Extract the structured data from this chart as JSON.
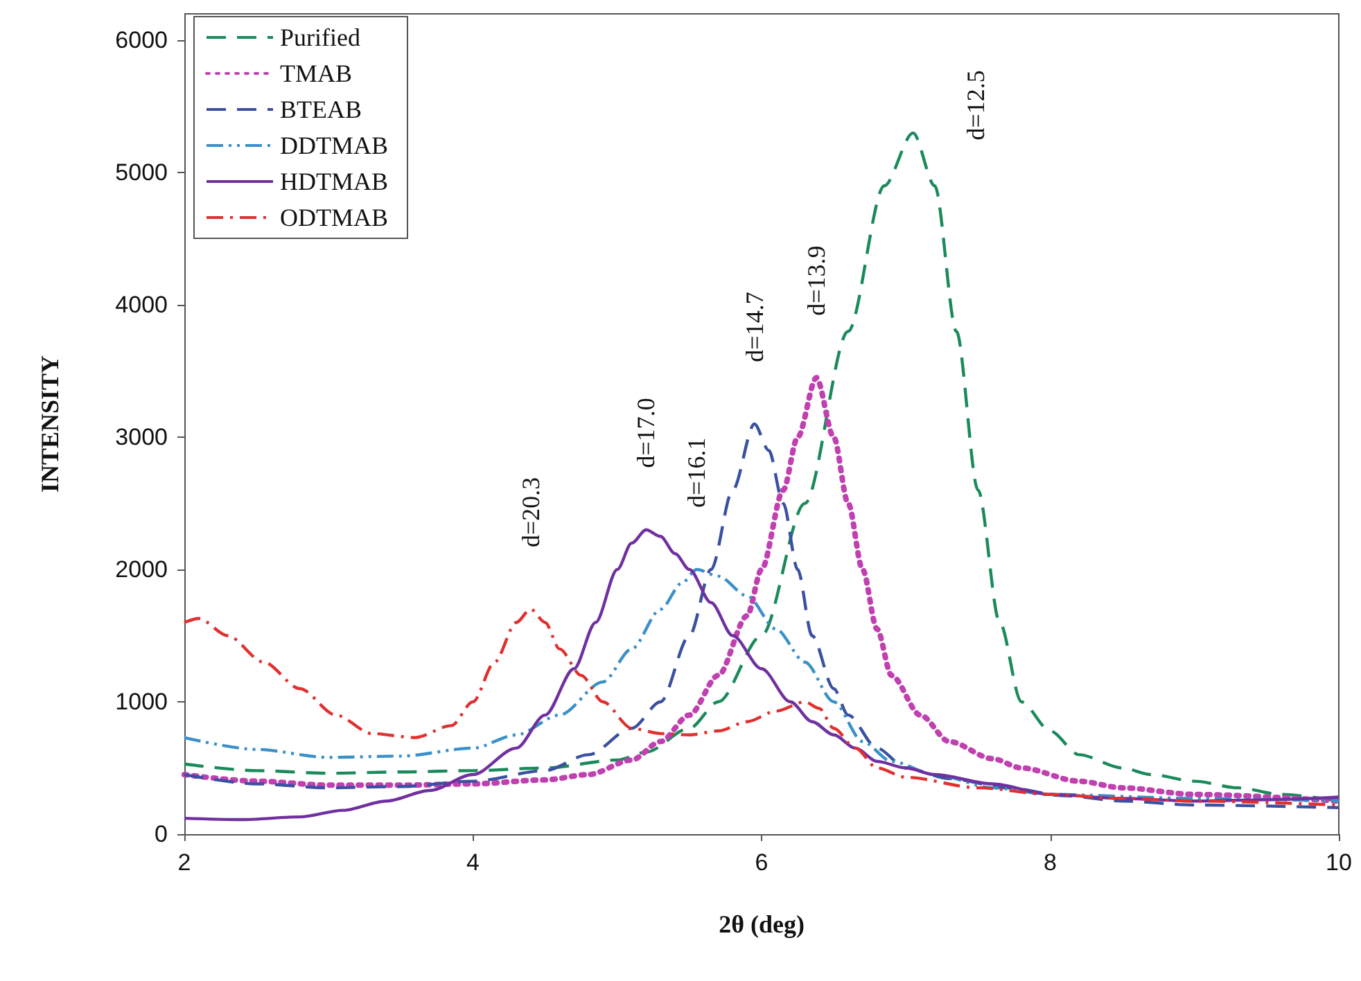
{
  "chart_data": {
    "type": "line",
    "xlabel": "2θ (deg)",
    "ylabel": "INTENSITY",
    "xlim": [
      2,
      10
    ],
    "xticks": [
      2,
      4,
      6,
      8,
      10
    ],
    "ylim": [
      0,
      6200
    ],
    "yticks": [
      0,
      1000,
      2000,
      3000,
      4000,
      5000,
      6000
    ],
    "grid": false,
    "legend": "top left",
    "marker": "none",
    "series": [
      {
        "name": "Purified",
        "color": "#1a8a5a",
        "line_style": "dashed",
        "x": [
          2,
          2.5,
          3,
          3.5,
          4,
          4.5,
          5,
          5.2,
          5.5,
          5.7,
          6,
          6.3,
          6.6,
          6.85,
          7.05,
          7.2,
          7.35,
          7.5,
          7.65,
          7.8,
          8,
          8.2,
          8.5,
          8.7,
          9,
          9.3,
          9.6,
          10
        ],
        "values": [
          530,
          480,
          460,
          470,
          480,
          500,
          560,
          620,
          800,
          1000,
          1500,
          2500,
          3800,
          4900,
          5300,
          4900,
          3800,
          2600,
          1600,
          1000,
          780,
          600,
          500,
          450,
          400,
          350,
          300,
          250
        ]
      },
      {
        "name": "TMAB",
        "color": "#c040b0",
        "line_style": "dotted",
        "x": [
          2,
          2.5,
          3,
          3.5,
          4,
          4.5,
          4.8,
          5.1,
          5.3,
          5.5,
          5.7,
          5.9,
          6.0,
          6.15,
          6.25,
          6.38,
          6.5,
          6.6,
          6.7,
          6.8,
          6.9,
          7.1,
          7.3,
          7.6,
          7.8,
          8.2,
          8.5,
          9,
          10
        ],
        "values": [
          450,
          400,
          370,
          370,
          380,
          410,
          450,
          560,
          700,
          900,
          1200,
          1650,
          2000,
          2600,
          3000,
          3450,
          3000,
          2500,
          2000,
          1550,
          1200,
          900,
          700,
          570,
          500,
          400,
          350,
          300,
          250
        ]
      },
      {
        "name": "BTEAB",
        "color": "#3a50a0",
        "line_style": "dashed",
        "x": [
          2,
          2.5,
          3,
          3.5,
          4,
          4.5,
          4.8,
          5.1,
          5.3,
          5.5,
          5.65,
          5.8,
          5.95,
          6.05,
          6.15,
          6.25,
          6.35,
          6.5,
          6.6,
          6.8,
          7,
          7.3,
          7.7,
          8.1,
          8.5,
          9,
          10
        ],
        "values": [
          450,
          380,
          350,
          360,
          400,
          480,
          600,
          800,
          1000,
          1500,
          2000,
          2600,
          3100,
          2900,
          2500,
          2000,
          1500,
          1100,
          900,
          650,
          500,
          420,
          350,
          290,
          250,
          220,
          200
        ]
      },
      {
        "name": "DDTMAB",
        "color": "#3a90c8",
        "line_style": "dashdotdot",
        "x": [
          2,
          2.5,
          3,
          3.5,
          4,
          4.3,
          4.6,
          4.9,
          5.1,
          5.3,
          5.45,
          5.55,
          5.7,
          5.9,
          6.1,
          6.3,
          6.5,
          6.7,
          6.9,
          7.2,
          7.6,
          8,
          9,
          10
        ],
        "values": [
          730,
          640,
          580,
          590,
          650,
          750,
          900,
          1150,
          1400,
          1700,
          1900,
          2000,
          1950,
          1800,
          1550,
          1300,
          1000,
          700,
          550,
          450,
          350,
          300,
          270,
          250
        ]
      },
      {
        "name": "HDTMAB",
        "color": "#7030a0",
        "line_style": "solid",
        "x": [
          2,
          2.4,
          2.8,
          3.1,
          3.4,
          3.7,
          4,
          4.3,
          4.5,
          4.7,
          4.85,
          5,
          5.1,
          5.2,
          5.3,
          5.4,
          5.5,
          5.65,
          5.8,
          6,
          6.2,
          6.35,
          6.5,
          6.65,
          6.8,
          7,
          7.2,
          7.6,
          8,
          8.5,
          9,
          9.5,
          10
        ],
        "values": [
          120,
          110,
          130,
          180,
          250,
          330,
          450,
          650,
          900,
          1250,
          1600,
          2000,
          2200,
          2300,
          2250,
          2120,
          2000,
          1750,
          1500,
          1250,
          1000,
          850,
          750,
          650,
          550,
          500,
          450,
          380,
          300,
          270,
          250,
          260,
          280
        ]
      },
      {
        "name": "ODTMAB",
        "color": "#e03030",
        "line_style": "dashdot",
        "x": [
          2,
          2.1,
          2.3,
          2.55,
          2.8,
          3.05,
          3.3,
          3.6,
          3.85,
          4,
          4.15,
          4.3,
          4.4,
          4.5,
          4.6,
          4.75,
          4.9,
          5.1,
          5.3,
          5.5,
          5.7,
          5.9,
          6.1,
          6.3,
          6.4,
          6.5,
          6.65,
          6.8,
          7,
          7.5,
          8,
          8.5,
          9,
          10
        ],
        "values": [
          1600,
          1630,
          1500,
          1300,
          1100,
          900,
          760,
          730,
          820,
          1000,
          1300,
          1600,
          1700,
          1600,
          1400,
          1200,
          1000,
          800,
          760,
          750,
          780,
          850,
          930,
          1000,
          950,
          800,
          650,
          500,
          430,
          350,
          300,
          270,
          250,
          220
        ]
      }
    ],
    "annotations": [
      {
        "text": "d=20.3",
        "x": 4.4,
        "y": 1700
      },
      {
        "text": "d=16.1",
        "x": 5.55,
        "y": 2000
      },
      {
        "text": "d=17.0",
        "x": 5.2,
        "y": 2300
      },
      {
        "text": "d=14.7",
        "x": 5.95,
        "y": 3100
      },
      {
        "text": "d=13.9",
        "x": 6.38,
        "y": 3450
      },
      {
        "text": "d=12.5",
        "x": 7.05,
        "y": 5300
      }
    ]
  }
}
